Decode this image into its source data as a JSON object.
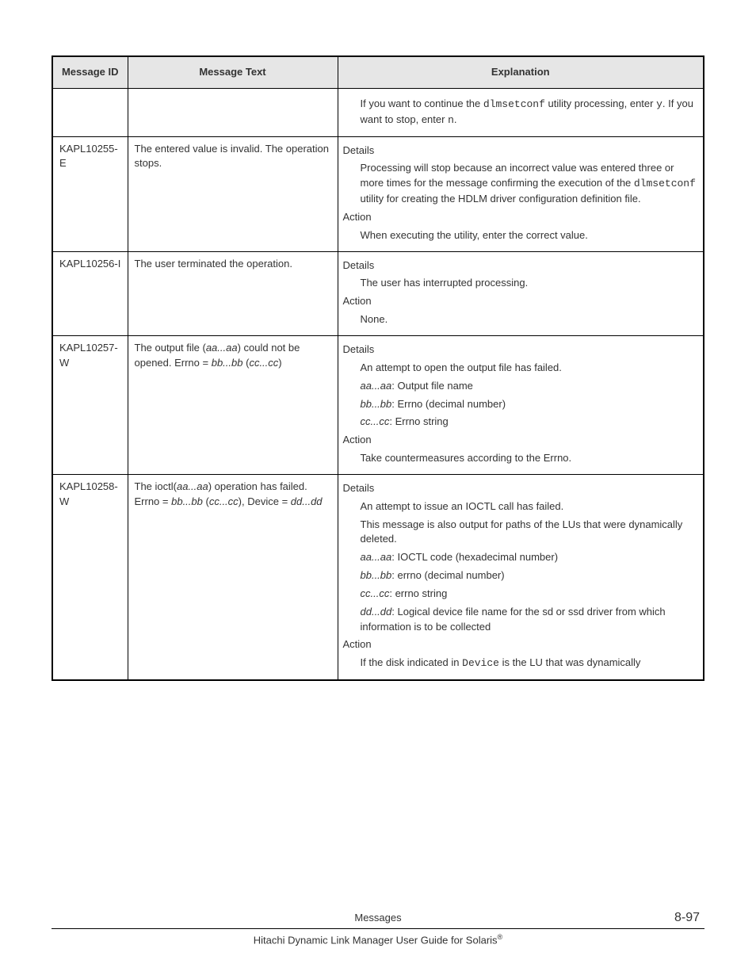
{
  "table": {
    "headers": {
      "id": "Message ID",
      "text": "Message Text",
      "exp": "Explanation"
    },
    "rows": [
      {
        "id": "",
        "text": "",
        "exp": {
          "details_label": null,
          "details": [],
          "action_label": null,
          "action_preblocks": [
            {
              "runs": [
                {
                  "t": "If you want to continue the "
                },
                {
                  "t": "dlmsetconf",
                  "cls": "mono"
                },
                {
                  "t": " utility processing, enter "
                },
                {
                  "t": "y",
                  "cls": "mono"
                },
                {
                  "t": ". If you want to stop, enter "
                },
                {
                  "t": "n",
                  "cls": "mono"
                },
                {
                  "t": "."
                }
              ]
            }
          ],
          "action": []
        }
      },
      {
        "id": "KAPL10255-E",
        "text": {
          "runs": [
            {
              "t": "The entered value is invalid. The operation stops."
            }
          ]
        },
        "exp": {
          "details_label": "Details",
          "details": [
            {
              "runs": [
                {
                  "t": "Processing will stop because an incorrect value was entered three or more times for the message confirming the execution of the "
                },
                {
                  "t": "dlmsetconf",
                  "cls": "mono"
                },
                {
                  "t": " utility for creating the HDLM driver configuration definition file."
                }
              ]
            }
          ],
          "action_label": "Action",
          "action": [
            {
              "runs": [
                {
                  "t": "When executing the utility, enter the correct value."
                }
              ]
            }
          ]
        }
      },
      {
        "id": "KAPL10256-I",
        "text": {
          "runs": [
            {
              "t": "The user terminated the operation."
            }
          ]
        },
        "exp": {
          "details_label": "Details",
          "details": [
            {
              "runs": [
                {
                  "t": "The user has interrupted processing."
                }
              ]
            }
          ],
          "action_label": "Action",
          "action": [
            {
              "runs": [
                {
                  "t": "None."
                }
              ]
            }
          ]
        }
      },
      {
        "id": "KAPL10257-W",
        "text": {
          "runs": [
            {
              "t": "The output file ("
            },
            {
              "t": "aa...aa",
              "cls": "ital"
            },
            {
              "t": ") could not be opened. Errno = "
            },
            {
              "t": "bb...bb",
              "cls": "ital"
            },
            {
              "t": " ("
            },
            {
              "t": "cc...cc",
              "cls": "ital"
            },
            {
              "t": ")"
            }
          ]
        },
        "exp": {
          "details_label": "Details",
          "details": [
            {
              "runs": [
                {
                  "t": "An attempt to open the output file has failed."
                }
              ]
            },
            {
              "runs": [
                {
                  "t": "aa...aa",
                  "cls": "ital"
                },
                {
                  "t": ": Output file name"
                }
              ]
            },
            {
              "runs": [
                {
                  "t": "bb...bb",
                  "cls": "ital"
                },
                {
                  "t": ": Errno (decimal number)"
                }
              ]
            },
            {
              "runs": [
                {
                  "t": "cc...cc",
                  "cls": "ital"
                },
                {
                  "t": ": Errno string"
                }
              ]
            }
          ],
          "action_label": "Action",
          "action": [
            {
              "runs": [
                {
                  "t": "Take countermeasures according to the Errno."
                }
              ]
            }
          ]
        }
      },
      {
        "id": "KAPL10258-W",
        "text": {
          "runs": [
            {
              "t": "The ioctl("
            },
            {
              "t": "aa...aa",
              "cls": "ital"
            },
            {
              "t": ") operation has failed. Errno = "
            },
            {
              "t": "bb...bb",
              "cls": "ital"
            },
            {
              "t": " ("
            },
            {
              "t": "cc...cc",
              "cls": "ital"
            },
            {
              "t": "), Device = "
            },
            {
              "t": "dd...dd",
              "cls": "ital"
            }
          ]
        },
        "exp": {
          "details_label": "Details",
          "details": [
            {
              "runs": [
                {
                  "t": "An attempt to issue an IOCTL call has failed."
                }
              ]
            },
            {
              "runs": [
                {
                  "t": "This message is also output for paths of the LUs that were dynamically deleted."
                }
              ]
            },
            {
              "runs": [
                {
                  "t": "aa...aa",
                  "cls": "ital"
                },
                {
                  "t": ": IOCTL code (hexadecimal number)"
                }
              ]
            },
            {
              "runs": [
                {
                  "t": "bb...bb",
                  "cls": "ital"
                },
                {
                  "t": ": errno (decimal number)"
                }
              ]
            },
            {
              "runs": [
                {
                  "t": "cc...cc",
                  "cls": "ital"
                },
                {
                  "t": ": errno string"
                }
              ]
            },
            {
              "runs": [
                {
                  "t": "dd...dd",
                  "cls": "ital"
                },
                {
                  "t": ": Logical device file name for the sd or ssd driver from which information is to be collected"
                }
              ]
            }
          ],
          "action_label": "Action",
          "action": [
            {
              "runs": [
                {
                  "t": "If the disk indicated in "
                },
                {
                  "t": "Device",
                  "cls": "mono"
                },
                {
                  "t": " is the LU that was dynamically"
                }
              ]
            }
          ]
        }
      }
    ]
  },
  "footer": {
    "section": "Messages",
    "page": "8-97",
    "title_pre": "Hitachi Dynamic Link Manager User Guide for Solaris",
    "title_sup": "®"
  }
}
